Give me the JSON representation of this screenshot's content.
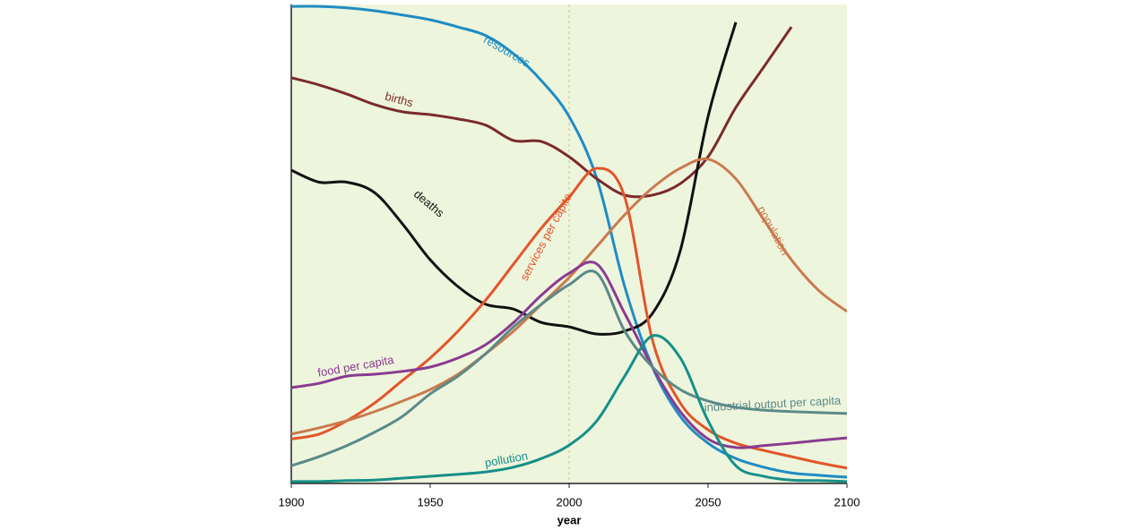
{
  "chart_data": {
    "type": "line",
    "x_label": "year",
    "x": [
      1900,
      1910,
      1920,
      1930,
      1940,
      1950,
      1960,
      1970,
      1980,
      1990,
      2000,
      2010,
      2020,
      2030,
      2040,
      2050,
      2060,
      2070,
      2080,
      2090,
      2100
    ],
    "xlim": [
      1900,
      2100
    ],
    "xticks": [
      1900,
      1950,
      2000,
      2050,
      2100
    ],
    "ylim": [
      0,
      100
    ],
    "reference_line_x": 2000,
    "background": "#eef5dd",
    "series": [
      {
        "name": "resources",
        "color": "#1f8cc4",
        "values": [
          99.6,
          99.6,
          99.3,
          98.7,
          97.8,
          96.8,
          95.3,
          93.5,
          89.7,
          84.1,
          76.6,
          63.6,
          41.1,
          24.3,
          14.0,
          8.4,
          5.2,
          3.4,
          2.2,
          1.7,
          1.3
        ]
      },
      {
        "name": "births",
        "color": "#7b2b2b",
        "values": [
          84.7,
          83.2,
          81.3,
          79.1,
          77.6,
          77.0,
          76.1,
          74.8,
          71.6,
          71.4,
          68.2,
          63.6,
          60.2,
          60.2,
          62.6,
          68.2,
          78.5,
          86.9,
          95.3,
          null,
          null
        ]
      },
      {
        "name": "deaths",
        "color": "#111111",
        "values": [
          65.4,
          62.9,
          62.9,
          60.7,
          54.2,
          46.7,
          41.1,
          37.4,
          36.4,
          33.6,
          32.7,
          31.2,
          31.8,
          35.5,
          48.6,
          76.6,
          96.3,
          null,
          null,
          null,
          null
        ]
      },
      {
        "name": "services per capita",
        "color": "#e3552a",
        "values": [
          9.3,
          10.3,
          13.1,
          16.8,
          21.5,
          26.2,
          31.8,
          38.3,
          45.8,
          53.3,
          59.8,
          65.8,
          59.8,
          29.9,
          16.8,
          11.2,
          8.4,
          6.9,
          5.6,
          4.3,
          3.2
        ]
      },
      {
        "name": "population",
        "color": "#c97b4f",
        "values": [
          10.3,
          11.6,
          13.1,
          15.0,
          17.2,
          19.6,
          22.8,
          27.1,
          31.8,
          37.4,
          43.0,
          49.5,
          56.1,
          61.7,
          65.8,
          67.7,
          63.6,
          55.1,
          46.7,
          40.2,
          35.9
        ]
      },
      {
        "name": "food per capita",
        "color": "#8a3b90",
        "values": [
          20.0,
          20.9,
          22.4,
          22.8,
          23.4,
          24.3,
          26.2,
          29.0,
          33.6,
          39.3,
          43.9,
          45.8,
          35.5,
          24.3,
          15.0,
          9.3,
          7.5,
          7.9,
          8.4,
          9.0,
          9.5
        ]
      },
      {
        "name": "industrial output per capita",
        "color": "#5b8a88",
        "values": [
          3.7,
          5.6,
          7.9,
          10.7,
          14.0,
          18.7,
          22.4,
          27.1,
          32.7,
          37.4,
          41.5,
          43.9,
          31.8,
          24.3,
          19.6,
          17.2,
          15.9,
          15.3,
          15.0,
          14.8,
          14.6
        ]
      },
      {
        "name": "pollution",
        "color": "#159088",
        "values": [
          0.4,
          0.4,
          0.6,
          0.7,
          1.1,
          1.5,
          1.9,
          2.4,
          3.4,
          5.2,
          8.0,
          13.1,
          22.4,
          30.8,
          26.2,
          13.1,
          3.7,
          1.5,
          0.7,
          0.6,
          0.4
        ]
      }
    ]
  }
}
